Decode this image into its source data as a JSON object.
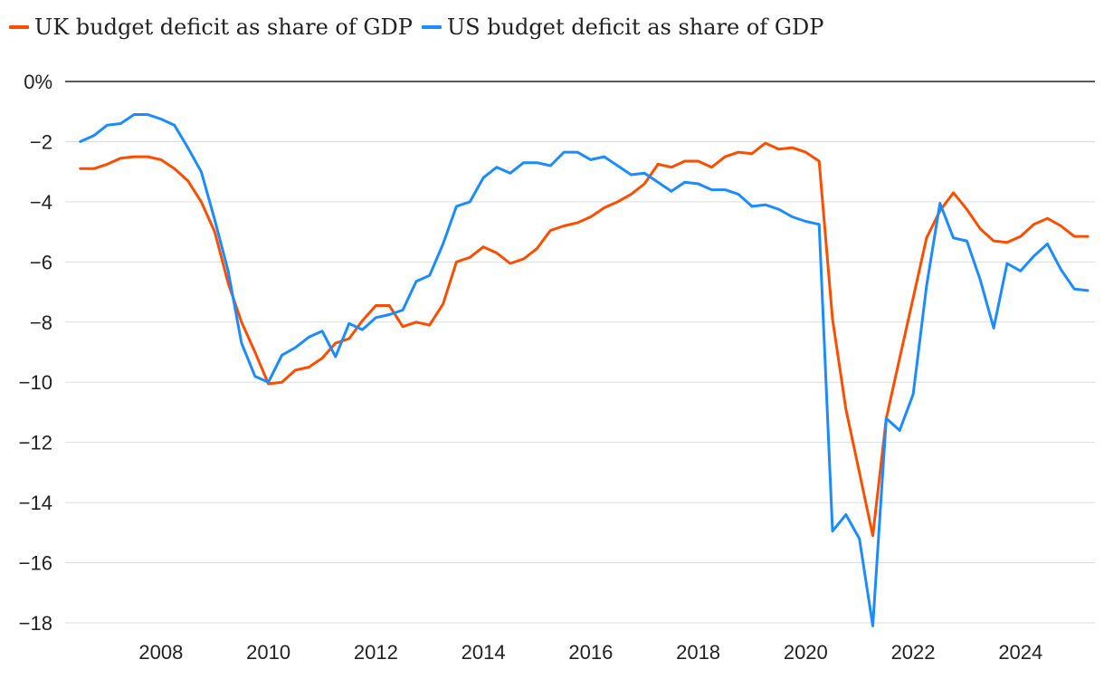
{
  "legend": {
    "uk_label": "UK budget deficit as share of GDP",
    "us_label": "US budget deficit as share of GDP"
  },
  "colors": {
    "uk": "#FF4D00",
    "us": "#1A8CFF",
    "grid": "#dddddd",
    "zero": "#222222"
  },
  "chart_data": {
    "type": "line",
    "title": "",
    "xlabel": "",
    "ylabel": "",
    "xlim": [
      2006.5,
      2025.5
    ],
    "ylim": [
      -18,
      0
    ],
    "y_ticks": [
      0,
      -2,
      -4,
      -6,
      -8,
      -10,
      -12,
      -14,
      -16,
      -18
    ],
    "y_tick_labels": [
      "0%",
      "−2",
      "−4",
      "−6",
      "−8",
      "−10",
      "−12",
      "−14",
      "−16",
      "−18"
    ],
    "x_ticks": [
      2008,
      2010,
      2012,
      2014,
      2016,
      2018,
      2020,
      2022,
      2024
    ],
    "x_tick_labels": [
      "2008",
      "2010",
      "2012",
      "2014",
      "2016",
      "2018",
      "2020",
      "2022",
      "2024"
    ],
    "grid": true,
    "series": [
      {
        "name": "UK budget deficit as share of GDP",
        "points": [
          [
            2006.75,
            -2.9
          ],
          [
            2007.0,
            -2.9
          ],
          [
            2007.25,
            -2.75
          ],
          [
            2007.5,
            -2.55
          ],
          [
            2007.75,
            -2.5
          ],
          [
            2008.0,
            -2.5
          ],
          [
            2008.25,
            -2.6
          ],
          [
            2008.5,
            -2.9
          ],
          [
            2008.75,
            -3.3
          ],
          [
            2009.0,
            -4.0
          ],
          [
            2009.25,
            -5.0
          ],
          [
            2009.5,
            -6.7
          ],
          [
            2009.75,
            -8.0
          ],
          [
            2010.0,
            -9.0
          ],
          [
            2010.25,
            -10.05
          ],
          [
            2010.5,
            -10.0
          ],
          [
            2010.75,
            -9.6
          ],
          [
            2011.0,
            -9.5
          ],
          [
            2011.25,
            -9.2
          ],
          [
            2011.5,
            -8.7
          ],
          [
            2011.75,
            -8.55
          ],
          [
            2012.0,
            -7.95
          ],
          [
            2012.25,
            -7.45
          ],
          [
            2012.5,
            -7.45
          ],
          [
            2012.75,
            -8.15
          ],
          [
            2013.0,
            -8.0
          ],
          [
            2013.25,
            -8.1
          ],
          [
            2013.5,
            -7.4
          ],
          [
            2013.75,
            -6.0
          ],
          [
            2014.0,
            -5.85
          ],
          [
            2014.25,
            -5.5
          ],
          [
            2014.5,
            -5.7
          ],
          [
            2014.75,
            -6.05
          ],
          [
            2015.0,
            -5.9
          ],
          [
            2015.25,
            -5.55
          ],
          [
            2015.5,
            -4.95
          ],
          [
            2015.75,
            -4.8
          ],
          [
            2016.0,
            -4.7
          ],
          [
            2016.25,
            -4.5
          ],
          [
            2016.5,
            -4.2
          ],
          [
            2016.75,
            -4.0
          ],
          [
            2017.0,
            -3.75
          ],
          [
            2017.25,
            -3.4
          ],
          [
            2017.5,
            -2.75
          ],
          [
            2017.75,
            -2.85
          ],
          [
            2018.0,
            -2.65
          ],
          [
            2018.25,
            -2.65
          ],
          [
            2018.5,
            -2.85
          ],
          [
            2018.75,
            -2.5
          ],
          [
            2019.0,
            -2.35
          ],
          [
            2019.25,
            -2.4
          ],
          [
            2019.5,
            -2.05
          ],
          [
            2019.75,
            -2.25
          ],
          [
            2020.0,
            -2.2
          ],
          [
            2020.25,
            -2.35
          ],
          [
            2020.5,
            -2.65
          ],
          [
            2020.75,
            -7.9
          ],
          [
            2021.0,
            -10.9
          ],
          [
            2021.25,
            -13.0
          ],
          [
            2021.5,
            -15.1
          ],
          [
            2021.75,
            -11.2
          ],
          [
            2022.0,
            -9.2
          ],
          [
            2022.25,
            -7.2
          ],
          [
            2022.5,
            -5.2
          ],
          [
            2022.75,
            -4.3
          ],
          [
            2023.0,
            -3.7
          ],
          [
            2023.25,
            -4.25
          ],
          [
            2023.5,
            -4.9
          ],
          [
            2023.75,
            -5.3
          ],
          [
            2024.0,
            -5.35
          ],
          [
            2024.25,
            -5.15
          ],
          [
            2024.5,
            -4.75
          ],
          [
            2024.75,
            -4.55
          ],
          [
            2025.0,
            -4.8
          ],
          [
            2025.25,
            -5.15
          ],
          [
            2025.5,
            -5.15
          ]
        ]
      },
      {
        "name": "US budget deficit as share of GDP",
        "points": [
          [
            2006.75,
            -2.0
          ],
          [
            2007.0,
            -1.8
          ],
          [
            2007.25,
            -1.45
          ],
          [
            2007.5,
            -1.4
          ],
          [
            2007.75,
            -1.1
          ],
          [
            2008.0,
            -1.1
          ],
          [
            2008.25,
            -1.25
          ],
          [
            2008.5,
            -1.45
          ],
          [
            2008.75,
            -2.2
          ],
          [
            2009.0,
            -3.0
          ],
          [
            2009.25,
            -4.6
          ],
          [
            2009.5,
            -6.3
          ],
          [
            2009.75,
            -8.7
          ],
          [
            2010.0,
            -9.8
          ],
          [
            2010.25,
            -10.0
          ],
          [
            2010.5,
            -9.1
          ],
          [
            2010.75,
            -8.85
          ],
          [
            2011.0,
            -8.5
          ],
          [
            2011.25,
            -8.3
          ],
          [
            2011.5,
            -9.15
          ],
          [
            2011.75,
            -8.05
          ],
          [
            2012.0,
            -8.25
          ],
          [
            2012.25,
            -7.85
          ],
          [
            2012.5,
            -7.75
          ],
          [
            2012.75,
            -7.6
          ],
          [
            2013.0,
            -6.65
          ],
          [
            2013.25,
            -6.45
          ],
          [
            2013.5,
            -5.4
          ],
          [
            2013.75,
            -4.15
          ],
          [
            2014.0,
            -4.0
          ],
          [
            2014.25,
            -3.2
          ],
          [
            2014.5,
            -2.85
          ],
          [
            2014.75,
            -3.05
          ],
          [
            2015.0,
            -2.7
          ],
          [
            2015.25,
            -2.7
          ],
          [
            2015.5,
            -2.8
          ],
          [
            2015.75,
            -2.35
          ],
          [
            2016.0,
            -2.35
          ],
          [
            2016.25,
            -2.6
          ],
          [
            2016.5,
            -2.5
          ],
          [
            2016.75,
            -2.8
          ],
          [
            2017.0,
            -3.1
          ],
          [
            2017.25,
            -3.05
          ],
          [
            2017.5,
            -3.35
          ],
          [
            2017.75,
            -3.65
          ],
          [
            2018.0,
            -3.35
          ],
          [
            2018.25,
            -3.4
          ],
          [
            2018.5,
            -3.6
          ],
          [
            2018.75,
            -3.6
          ],
          [
            2019.0,
            -3.75
          ],
          [
            2019.25,
            -4.15
          ],
          [
            2019.5,
            -4.1
          ],
          [
            2019.75,
            -4.25
          ],
          [
            2020.0,
            -4.5
          ],
          [
            2020.25,
            -4.65
          ],
          [
            2020.5,
            -4.75
          ],
          [
            2020.75,
            -14.95
          ],
          [
            2021.0,
            -14.4
          ],
          [
            2021.25,
            -15.2
          ],
          [
            2021.5,
            -18.1
          ],
          [
            2021.75,
            -11.2
          ],
          [
            2022.0,
            -11.6
          ],
          [
            2022.25,
            -10.4
          ],
          [
            2022.5,
            -6.8
          ],
          [
            2022.75,
            -4.05
          ],
          [
            2023.0,
            -5.2
          ],
          [
            2023.25,
            -5.3
          ],
          [
            2023.5,
            -6.6
          ],
          [
            2023.75,
            -8.2
          ],
          [
            2024.0,
            -6.05
          ],
          [
            2024.25,
            -6.3
          ],
          [
            2024.5,
            -5.8
          ],
          [
            2024.75,
            -5.4
          ],
          [
            2025.0,
            -6.25
          ],
          [
            2025.25,
            -6.9
          ],
          [
            2025.5,
            -6.95
          ]
        ]
      }
    ]
  }
}
